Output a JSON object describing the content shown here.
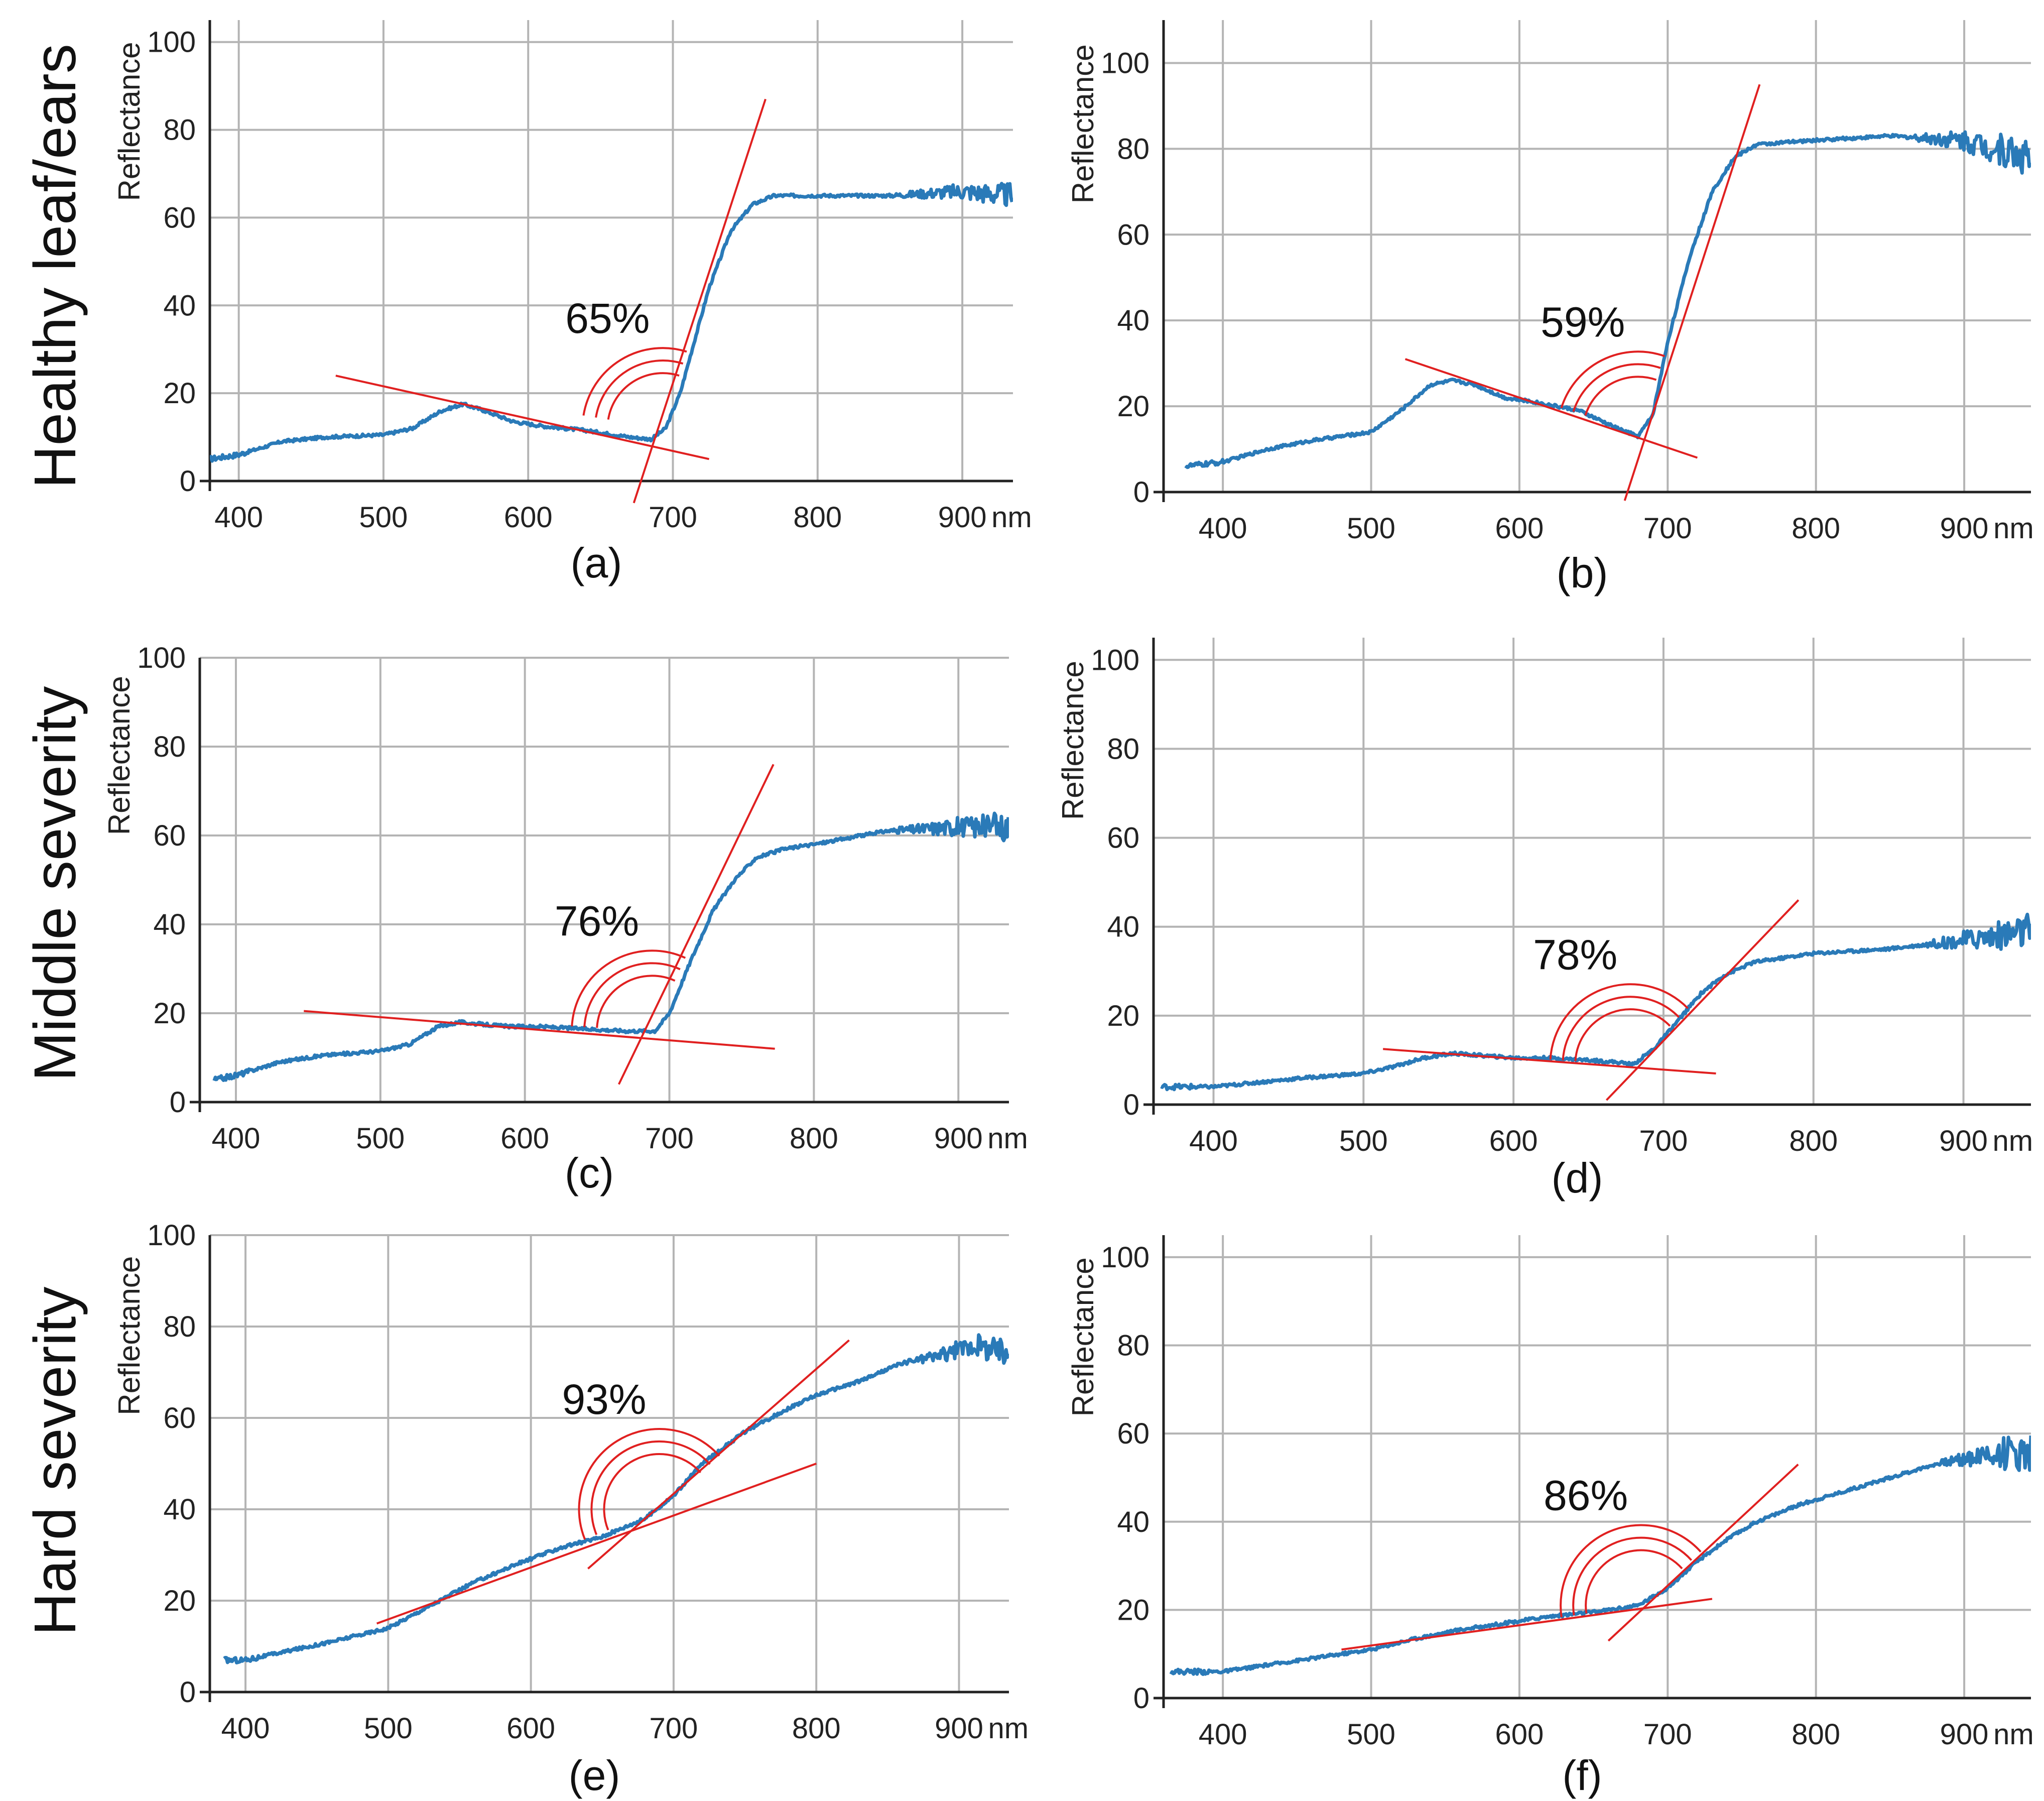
{
  "rows": [
    "Healthy leaf/ears",
    "Middle severity",
    "Hard severity"
  ],
  "colors": {
    "spectrum": "#2a7ab8",
    "fit": "#e02020",
    "grid": "#b4b4b4",
    "axis": "#222222"
  },
  "chart_data": [
    {
      "id": "a",
      "type": "line",
      "caption": "(a)",
      "annotation": "65%",
      "title": "",
      "xlabel": "nm",
      "ylabel": "Reflectance",
      "xlim": [
        380,
        935
      ],
      "ylim": [
        0,
        105
      ],
      "x_ticks": [
        400,
        500,
        600,
        700,
        800,
        900
      ],
      "y_ticks": [
        0,
        20,
        40,
        60,
        80,
        100
      ],
      "series": [
        {
          "name": "reflectance",
          "x": [
            380,
            400,
            430,
            460,
            500,
            520,
            540,
            555,
            570,
            590,
            610,
            640,
            670,
            685,
            695,
            705,
            715,
            725,
            740,
            755,
            770,
            800,
            850,
            900,
            935
          ],
          "y": [
            5,
            6,
            9,
            10,
            10.5,
            12,
            16,
            17.5,
            16,
            13.5,
            12.5,
            11.5,
            10,
            9.5,
            12,
            20,
            32,
            44,
            57,
            63,
            65,
            65,
            65,
            66,
            65
          ]
        }
      ],
      "fit_lines": [
        {
          "x": [
            467,
            725
          ],
          "y": [
            24,
            5
          ]
        },
        {
          "x": [
            673,
            764
          ],
          "y": [
            -5,
            87
          ]
        }
      ],
      "angle_vertex": [
        693,
        12
      ],
      "noise_from": 850,
      "noise_amp": 2.5
    },
    {
      "id": "b",
      "type": "line",
      "caption": "(b)",
      "annotation": "59%",
      "title": "",
      "xlabel": "nm",
      "ylabel": "Reflectance",
      "xlim": [
        360,
        945
      ],
      "ylim": [
        0,
        110
      ],
      "x_ticks": [
        400,
        500,
        600,
        700,
        800,
        900
      ],
      "y_ticks": [
        0,
        20,
        40,
        60,
        80,
        100
      ],
      "series": [
        {
          "name": "reflectance",
          "x": [
            375,
            400,
            430,
            460,
            500,
            520,
            540,
            555,
            570,
            590,
            610,
            640,
            665,
            680,
            690,
            700,
            715,
            730,
            745,
            760,
            800,
            850,
            900,
            945
          ],
          "y": [
            6,
            7,
            10,
            12,
            14,
            19,
            25,
            26,
            25,
            22,
            21,
            19,
            15,
            13,
            18,
            35,
            55,
            70,
            78,
            81,
            82,
            83,
            82,
            78
          ]
        }
      ],
      "fit_lines": [
        {
          "x": [
            523,
            720
          ],
          "y": [
            31,
            8
          ]
        },
        {
          "x": [
            671,
            762
          ],
          "y": [
            -2,
            95
          ]
        }
      ],
      "angle_vertex": [
        680,
        14
      ],
      "noise_from": 860,
      "noise_amp": 4.5
    },
    {
      "id": "c",
      "type": "line",
      "caption": "(c)",
      "annotation": "76%",
      "title": "",
      "xlabel": "nm",
      "ylabel": "Reflectance",
      "xlim": [
        375,
        935
      ],
      "ylim": [
        0,
        100
      ],
      "x_ticks": [
        400,
        500,
        600,
        700,
        800,
        900
      ],
      "y_ticks": [
        0,
        20,
        40,
        60,
        80,
        100
      ],
      "series": [
        {
          "name": "reflectance",
          "x": [
            385,
            400,
            430,
            460,
            500,
            520,
            540,
            555,
            570,
            590,
            610,
            640,
            670,
            690,
            700,
            715,
            730,
            745,
            760,
            780,
            800,
            850,
            900,
            935
          ],
          "y": [
            5,
            6,
            9,
            10.5,
            11.5,
            13,
            17,
            18,
            17.5,
            17,
            17,
            16.5,
            16,
            16,
            20,
            32,
            43,
            50,
            55,
            57,
            58,
            61,
            62,
            62
          ]
        }
      ],
      "fit_lines": [
        {
          "x": [
            447,
            773
          ],
          "y": [
            20.5,
            12
          ]
        },
        {
          "x": [
            665,
            772
          ],
          "y": [
            4,
            76
          ]
        }
      ],
      "angle_vertex": [
        688,
        16
      ],
      "noise_from": 850,
      "noise_amp": 3
    },
    {
      "id": "d",
      "type": "line",
      "caption": "(d)",
      "annotation": "78%",
      "title": "",
      "xlabel": "nm",
      "ylabel": "Reflectance",
      "xlim": [
        360,
        945
      ],
      "ylim": [
        0,
        105
      ],
      "x_ticks": [
        400,
        500,
        600,
        700,
        800,
        900
      ],
      "y_ticks": [
        0,
        20,
        40,
        60,
        80,
        100
      ],
      "series": [
        {
          "name": "reflectance",
          "x": [
            365,
            400,
            430,
            460,
            500,
            520,
            540,
            560,
            580,
            600,
            620,
            650,
            670,
            680,
            695,
            710,
            725,
            740,
            760,
            800,
            850,
            900,
            945
          ],
          "y": [
            4,
            4,
            5,
            6,
            7,
            8.5,
            10.5,
            11.5,
            11,
            10.5,
            10.5,
            10,
            9.5,
            9,
            13,
            19,
            25,
            29,
            32,
            34,
            35,
            37,
            39
          ]
        }
      ],
      "fit_lines": [
        {
          "x": [
            513,
            735
          ],
          "y": [
            12.5,
            7
          ]
        },
        {
          "x": [
            662,
            790
          ],
          "y": [
            1,
            46
          ]
        }
      ],
      "angle_vertex": [
        678,
        9
      ],
      "noise_from": 870,
      "noise_amp": 4
    },
    {
      "id": "e",
      "type": "line",
      "caption": "(e)",
      "annotation": "93%",
      "title": "",
      "xlabel": "nm",
      "ylabel": "Reflectance",
      "xlim": [
        375,
        935
      ],
      "ylim": [
        0,
        100
      ],
      "x_ticks": [
        400,
        500,
        600,
        700,
        800,
        900
      ],
      "y_ticks": [
        0,
        20,
        40,
        60,
        80,
        100
      ],
      "series": [
        {
          "name": "reflectance",
          "x": [
            385,
            400,
            430,
            460,
            500,
            530,
            560,
            590,
            620,
            650,
            680,
            700,
            720,
            750,
            780,
            800,
            830,
            860,
            890,
            910,
            935
          ],
          "y": [
            7,
            7,
            9,
            11,
            14,
            19,
            24,
            28,
            31.5,
            34,
            38,
            43,
            50,
            57,
            62,
            65,
            68,
            72,
            74,
            76,
            74
          ]
        }
      ],
      "fit_lines": [
        {
          "x": [
            492,
            800
          ],
          "y": [
            15,
            50
          ]
        },
        {
          "x": [
            640,
            823
          ],
          "y": [
            27,
            77
          ]
        }
      ],
      "angle_vertex": [
        690,
        40
      ],
      "noise_from": 860,
      "noise_amp": 3
    },
    {
      "id": "f",
      "type": "line",
      "caption": "(f)",
      "annotation": "86%",
      "title": "",
      "xlabel": "nm",
      "ylabel": "Reflectance",
      "xlim": [
        360,
        945
      ],
      "ylim": [
        0,
        105
      ],
      "x_ticks": [
        400,
        500,
        600,
        700,
        800,
        900
      ],
      "y_ticks": [
        0,
        20,
        40,
        60,
        80,
        100
      ],
      "series": [
        {
          "name": "reflectance",
          "x": [
            365,
            400,
            430,
            460,
            500,
            530,
            560,
            590,
            620,
            650,
            680,
            700,
            720,
            740,
            760,
            790,
            820,
            850,
            880,
            910,
            945
          ],
          "y": [
            6,
            6,
            7.5,
            9,
            11,
            13.5,
            15.5,
            17,
            18.5,
            19.5,
            21,
            25,
            31,
            36,
            40,
            44,
            47,
            50,
            53,
            55,
            56
          ]
        }
      ],
      "fit_lines": [
        {
          "x": [
            480,
            730
          ],
          "y": [
            11,
            22.5
          ]
        },
        {
          "x": [
            660,
            788
          ],
          "y": [
            13,
            53
          ]
        }
      ],
      "angle_vertex": [
        682,
        21
      ],
      "noise_from": 880,
      "noise_amp": 4.5
    }
  ]
}
